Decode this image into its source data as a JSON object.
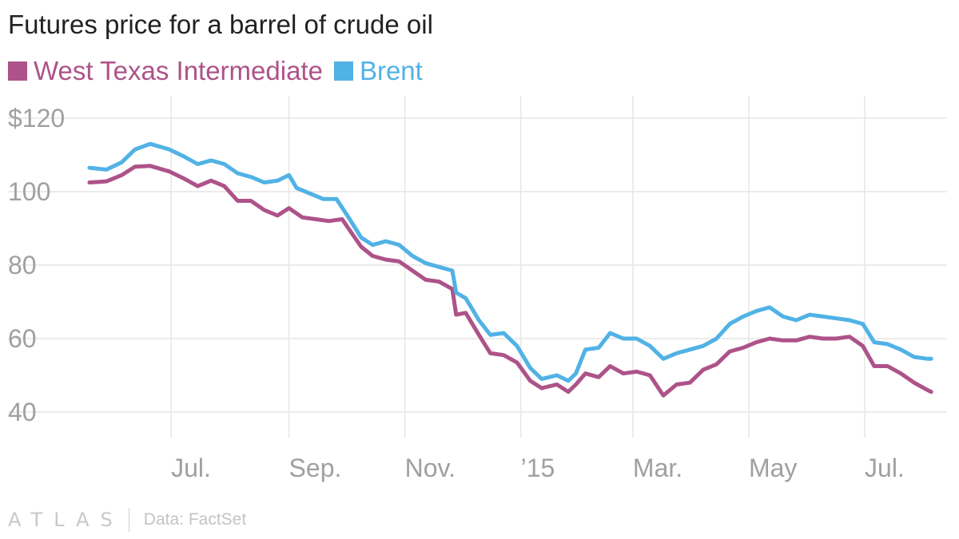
{
  "header": {
    "title": "Futures price for a barrel of crude oil"
  },
  "legend": [
    {
      "label": "West Texas Intermediate",
      "color": "#ad5389"
    },
    {
      "label": "Brent",
      "color": "#51b2e5"
    }
  ],
  "footer": {
    "logo": "ATLAS",
    "source": "Data: FactSet"
  },
  "chart_data": {
    "type": "line",
    "ylim": [
      35,
      120
    ],
    "y_ticks": [
      {
        "value": 120,
        "label": "$120"
      },
      {
        "value": 100,
        "label": "100"
      },
      {
        "value": 80,
        "label": "80"
      },
      {
        "value": 60,
        "label": "60"
      },
      {
        "value": 40,
        "label": "40"
      }
    ],
    "x_range": [
      "2014-05-14",
      "2015-08-07"
    ],
    "x_ticks": [
      {
        "date": "2014-07-01",
        "label": "Jul."
      },
      {
        "date": "2014-09-01",
        "label": "Sep."
      },
      {
        "date": "2014-11-01",
        "label": "Nov."
      },
      {
        "date": "2015-01-01",
        "label": "’15"
      },
      {
        "date": "2015-03-01",
        "label": "Mar."
      },
      {
        "date": "2015-05-01",
        "label": "May"
      },
      {
        "date": "2015-07-01",
        "label": "Jul."
      }
    ],
    "series": [
      {
        "name": "West Texas Intermediate",
        "color": "#ad5389",
        "points": [
          [
            "2014-05-19",
            102.5
          ],
          [
            "2014-05-28",
            102.8
          ],
          [
            "2014-06-05",
            104.5
          ],
          [
            "2014-06-12",
            106.8
          ],
          [
            "2014-06-20",
            107.0
          ],
          [
            "2014-06-30",
            105.5
          ],
          [
            "2014-07-08",
            103.5
          ],
          [
            "2014-07-15",
            101.5
          ],
          [
            "2014-07-22",
            103.0
          ],
          [
            "2014-07-29",
            101.5
          ],
          [
            "2014-08-05",
            97.5
          ],
          [
            "2014-08-12",
            97.5
          ],
          [
            "2014-08-19",
            95.0
          ],
          [
            "2014-08-26",
            93.5
          ],
          [
            "2014-09-01",
            95.5
          ],
          [
            "2014-09-08",
            93.0
          ],
          [
            "2014-09-15",
            92.5
          ],
          [
            "2014-09-22",
            92.0
          ],
          [
            "2014-09-29",
            92.5
          ],
          [
            "2014-10-03",
            89.5
          ],
          [
            "2014-10-09",
            85.0
          ],
          [
            "2014-10-15",
            82.5
          ],
          [
            "2014-10-22",
            81.5
          ],
          [
            "2014-10-29",
            81.0
          ],
          [
            "2014-11-05",
            78.5
          ],
          [
            "2014-11-12",
            76.0
          ],
          [
            "2014-11-19",
            75.5
          ],
          [
            "2014-11-26",
            73.5
          ],
          [
            "2014-11-28",
            66.5
          ],
          [
            "2014-12-03",
            67.0
          ],
          [
            "2014-12-10",
            61.0
          ],
          [
            "2014-12-16",
            56.0
          ],
          [
            "2014-12-23",
            55.5
          ],
          [
            "2014-12-30",
            53.5
          ],
          [
            "2015-01-06",
            48.5
          ],
          [
            "2015-01-12",
            46.5
          ],
          [
            "2015-01-20",
            47.5
          ],
          [
            "2015-01-26",
            45.5
          ],
          [
            "2015-01-30",
            47.5
          ],
          [
            "2015-02-04",
            50.5
          ],
          [
            "2015-02-11",
            49.5
          ],
          [
            "2015-02-17",
            52.5
          ],
          [
            "2015-02-24",
            50.5
          ],
          [
            "2015-03-03",
            51.0
          ],
          [
            "2015-03-10",
            50.0
          ],
          [
            "2015-03-17",
            44.5
          ],
          [
            "2015-03-24",
            47.5
          ],
          [
            "2015-03-31",
            48.0
          ],
          [
            "2015-04-07",
            51.5
          ],
          [
            "2015-04-14",
            53.0
          ],
          [
            "2015-04-21",
            56.5
          ],
          [
            "2015-04-28",
            57.5
          ],
          [
            "2015-05-05",
            59.0
          ],
          [
            "2015-05-12",
            60.0
          ],
          [
            "2015-05-19",
            59.5
          ],
          [
            "2015-05-26",
            59.5
          ],
          [
            "2015-06-02",
            60.5
          ],
          [
            "2015-06-09",
            60.0
          ],
          [
            "2015-06-16",
            60.0
          ],
          [
            "2015-06-23",
            60.5
          ],
          [
            "2015-06-30",
            58.0
          ],
          [
            "2015-07-06",
            52.5
          ],
          [
            "2015-07-13",
            52.5
          ],
          [
            "2015-07-20",
            50.5
          ],
          [
            "2015-07-27",
            48.0
          ],
          [
            "2015-08-03",
            46.0
          ],
          [
            "2015-08-05",
            45.5
          ]
        ]
      },
      {
        "name": "Brent",
        "color": "#51b2e5",
        "points": [
          [
            "2014-05-19",
            106.5
          ],
          [
            "2014-05-28",
            106.0
          ],
          [
            "2014-06-05",
            108.0
          ],
          [
            "2014-06-12",
            111.5
          ],
          [
            "2014-06-20",
            113.0
          ],
          [
            "2014-06-30",
            111.5
          ],
          [
            "2014-07-08",
            109.5
          ],
          [
            "2014-07-15",
            107.5
          ],
          [
            "2014-07-22",
            108.5
          ],
          [
            "2014-07-29",
            107.5
          ],
          [
            "2014-08-05",
            105.0
          ],
          [
            "2014-08-12",
            104.0
          ],
          [
            "2014-08-19",
            102.5
          ],
          [
            "2014-08-26",
            103.0
          ],
          [
            "2014-09-01",
            104.5
          ],
          [
            "2014-09-05",
            101.0
          ],
          [
            "2014-09-12",
            99.5
          ],
          [
            "2014-09-19",
            98.0
          ],
          [
            "2014-09-26",
            98.0
          ],
          [
            "2014-10-03",
            92.5
          ],
          [
            "2014-10-09",
            87.5
          ],
          [
            "2014-10-15",
            85.5
          ],
          [
            "2014-10-22",
            86.5
          ],
          [
            "2014-10-29",
            85.5
          ],
          [
            "2014-11-05",
            82.5
          ],
          [
            "2014-11-12",
            80.5
          ],
          [
            "2014-11-19",
            79.5
          ],
          [
            "2014-11-26",
            78.5
          ],
          [
            "2014-11-28",
            72.5
          ],
          [
            "2014-12-03",
            71.0
          ],
          [
            "2014-12-10",
            65.0
          ],
          [
            "2014-12-16",
            61.0
          ],
          [
            "2014-12-23",
            61.5
          ],
          [
            "2014-12-30",
            58.0
          ],
          [
            "2015-01-06",
            52.0
          ],
          [
            "2015-01-12",
            49.0
          ],
          [
            "2015-01-20",
            50.0
          ],
          [
            "2015-01-26",
            48.5
          ],
          [
            "2015-01-30",
            50.5
          ],
          [
            "2015-02-04",
            57.0
          ],
          [
            "2015-02-11",
            57.5
          ],
          [
            "2015-02-17",
            61.5
          ],
          [
            "2015-02-24",
            60.0
          ],
          [
            "2015-03-03",
            60.0
          ],
          [
            "2015-03-10",
            58.0
          ],
          [
            "2015-03-17",
            54.5
          ],
          [
            "2015-03-24",
            56.0
          ],
          [
            "2015-03-31",
            57.0
          ],
          [
            "2015-04-07",
            58.0
          ],
          [
            "2015-04-14",
            60.0
          ],
          [
            "2015-04-21",
            64.0
          ],
          [
            "2015-04-28",
            66.0
          ],
          [
            "2015-05-05",
            67.5
          ],
          [
            "2015-05-12",
            68.5
          ],
          [
            "2015-05-19",
            66.0
          ],
          [
            "2015-05-26",
            65.0
          ],
          [
            "2015-06-02",
            66.5
          ],
          [
            "2015-06-09",
            66.0
          ],
          [
            "2015-06-16",
            65.5
          ],
          [
            "2015-06-23",
            65.0
          ],
          [
            "2015-06-30",
            64.0
          ],
          [
            "2015-07-06",
            59.0
          ],
          [
            "2015-07-13",
            58.5
          ],
          [
            "2015-07-20",
            57.0
          ],
          [
            "2015-07-27",
            55.0
          ],
          [
            "2015-08-03",
            54.5
          ],
          [
            "2015-08-05",
            54.5
          ]
        ]
      }
    ]
  }
}
